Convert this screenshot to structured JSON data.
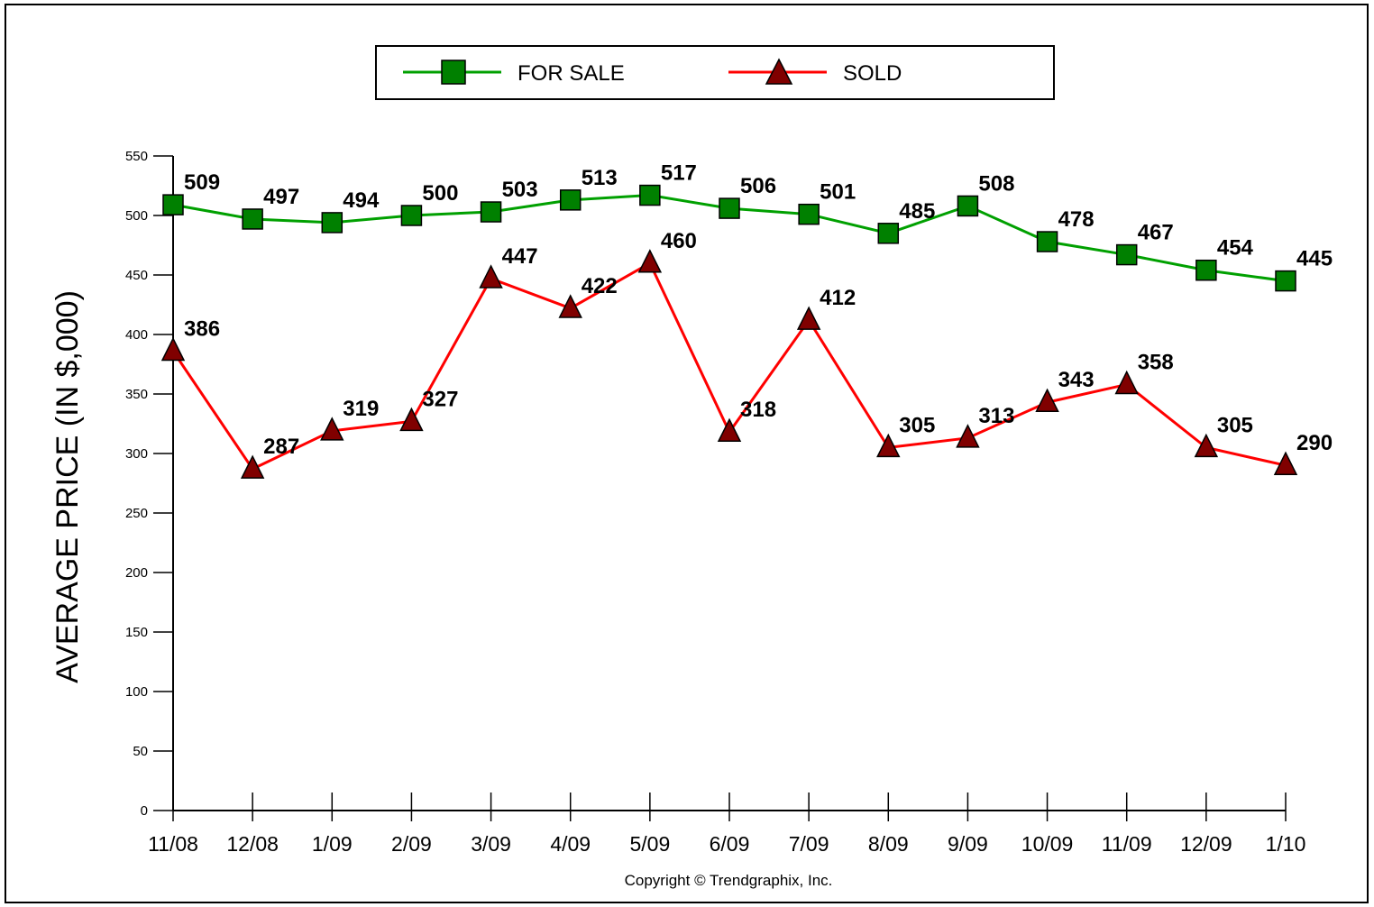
{
  "chart_data": {
    "type": "line",
    "categories": [
      "11/08",
      "12/08",
      "1/09",
      "2/09",
      "3/09",
      "4/09",
      "5/09",
      "6/09",
      "7/09",
      "8/09",
      "9/09",
      "10/09",
      "11/09",
      "12/09",
      "1/10"
    ],
    "series": [
      {
        "name": "FOR SALE",
        "color": "#00a000",
        "marker_color": "#008000",
        "marker": "square",
        "values": [
          509,
          497,
          494,
          500,
          503,
          513,
          517,
          506,
          501,
          485,
          508,
          478,
          467,
          454,
          445
        ]
      },
      {
        "name": "SOLD",
        "color": "#ff0000",
        "marker_color": "#800000",
        "marker": "triangle",
        "values": [
          386,
          287,
          319,
          327,
          447,
          422,
          460,
          318,
          412,
          305,
          313,
          343,
          358,
          305,
          290
        ]
      }
    ],
    "ylabel": "AVERAGE PRICE (IN $,000)",
    "xlabel": "",
    "ylim": [
      0,
      550
    ],
    "yticks": [
      0,
      50,
      100,
      150,
      200,
      250,
      300,
      350,
      400,
      450,
      500,
      550
    ],
    "legend_position": "top-center",
    "grid": false
  },
  "footer": {
    "copyright": "Copyright © Trendgraphix, Inc."
  }
}
